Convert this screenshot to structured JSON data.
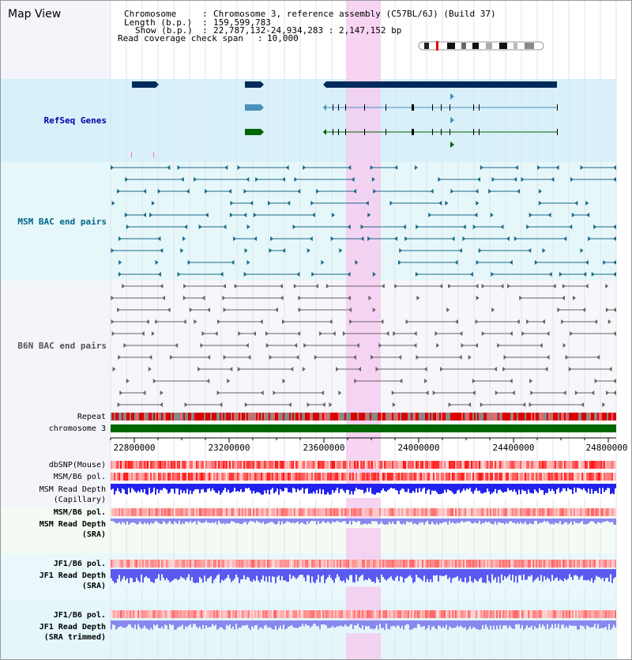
{
  "page": {
    "title": "Map View"
  },
  "info": {
    "chromosome_key": "Chromosome",
    "chromosome_value": "Chromosome 3, reference assembly (C57BL/6J) (Build 37)",
    "length_key": "Length (b.p.)",
    "length_value": "159,599,783",
    "show_key": "Show (b.p.)",
    "show_value": "22,787,132-24,934,283 : 2,147,152 bp",
    "read_key": "Read coverage check span",
    "read_value": "10,000"
  },
  "tracks": {
    "refseq": {
      "label": "RefSeq Genes",
      "color": "#0000aa"
    },
    "msm_bac": {
      "label": "MSM BAC end pairs",
      "color": "#006688"
    },
    "b6n_bac": {
      "label": "B6N BAC end pairs",
      "color": "#555555"
    },
    "repeat": {
      "label": "Repeat"
    },
    "chromosome": {
      "label": "chromosome 3",
      "color": "#006600"
    },
    "dbsnp": {
      "label": "dbSNP(Mouse)"
    },
    "msm_b6_pol": {
      "label": "MSM/B6 pol."
    },
    "msm_depth_cap_1": {
      "label": "MSM Read Depth"
    },
    "msm_depth_cap_2": {
      "label": "(Capillary)"
    },
    "msm_b6_pol_sra": {
      "label": "MSM/B6 pol.",
      "color": "#cc8800"
    },
    "msm_depth_sra_1": {
      "label": "MSM Read Depth"
    },
    "msm_depth_sra_2": {
      "label": "(SRA)"
    },
    "jf1_b6_pol": {
      "label": "JF1/B6 pol.",
      "color": "#cc8800"
    },
    "jf1_depth_sra_1": {
      "label": "JF1 Read Depth"
    },
    "jf1_depth_sra_2": {
      "label": "(SRA)"
    },
    "jf1_b6_pol_trim": {
      "label": "JF1/B6 pol.",
      "color": "#cc8800"
    },
    "jf1_depth_trim_1": {
      "label": "JF1 Read Depth"
    },
    "jf1_depth_trim_2": {
      "label": "(SRA trimmed)"
    }
  },
  "axis": {
    "ticks": [
      "22800000",
      "23200000",
      "23600000",
      "24000000",
      "24400000",
      "24800000"
    ]
  },
  "colors": {
    "refseq_bg": "#d8f0fa",
    "bac_bg": "#e6f7fa",
    "highlight": "#f5ccf0",
    "gene_dark": "#002a5c",
    "gene_mid": "#4a90b8",
    "gene_green": "#006600",
    "repeat_red": "#dd0000",
    "depth_blue": "#2222ee",
    "depth_light": "#8888ee"
  }
}
